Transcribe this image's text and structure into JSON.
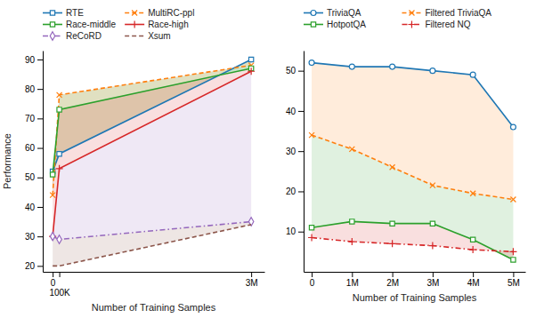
{
  "chart_data": [
    {
      "type": "line",
      "x_label": "Number of Training Samples",
      "y_label": "Performance",
      "x": [
        0,
        100000,
        3000000
      ],
      "xlim": [
        -150000,
        3200000
      ],
      "xticks": [
        0,
        {
          "value": 100000,
          "label": "100K"
        },
        {
          "value": 3000000,
          "label": "3M"
        }
      ],
      "ylim": [
        18,
        93
      ],
      "yticks": [
        20,
        30,
        40,
        50,
        60,
        70,
        80,
        90
      ],
      "series": [
        {
          "name": "RTE",
          "values": [
            52,
            58,
            90
          ],
          "marker": "square",
          "line_style": "solid"
        },
        {
          "name": "MultiRC-ppl",
          "values": [
            44,
            78,
            88
          ],
          "marker": "x",
          "line_style": "dashed"
        },
        {
          "name": "Race-middle",
          "values": [
            51,
            73,
            87
          ],
          "marker": "square",
          "line_style": "solid"
        },
        {
          "name": "Race-high",
          "values": [
            30,
            53,
            86
          ],
          "marker": "plus",
          "line_style": "solid"
        },
        {
          "name": "ReCoRD",
          "values": [
            30,
            29,
            35
          ],
          "marker": "diamond",
          "line_style": "dashdot"
        },
        {
          "name": "Xsum",
          "values": [
            20,
            20,
            34
          ],
          "marker": "none",
          "line_style": "dashed"
        }
      ],
      "fills": [
        {
          "upper": "RTE",
          "lower": "MultiRC-ppl"
        },
        {
          "upper": "MultiRC-ppl",
          "lower": "Race-middle"
        },
        {
          "upper": "RTE",
          "lower": "Race-middle"
        },
        {
          "upper": "Race-middle",
          "lower": "Race-high"
        },
        {
          "upper": "Race-high",
          "lower": "ReCoRD"
        },
        {
          "upper": "ReCoRD",
          "lower": "Xsum"
        }
      ],
      "legend": "top",
      "grid": false
    },
    {
      "type": "line",
      "x_label": "Number of Training Samples",
      "x": [
        0,
        1000000,
        2000000,
        3000000,
        4000000,
        5000000
      ],
      "xlim": [
        -200000,
        5300000
      ],
      "xticks": [
        0,
        {
          "value": 1000000,
          "label": "1M"
        },
        {
          "value": 2000000,
          "label": "2M"
        },
        {
          "value": 3000000,
          "label": "3M"
        },
        {
          "value": 4000000,
          "label": "4M"
        },
        {
          "value": 5000000,
          "label": "5M"
        }
      ],
      "ylim": [
        0,
        55
      ],
      "yticks": [
        10,
        20,
        30,
        40,
        50
      ],
      "series": [
        {
          "name": "TriviaQA",
          "values": [
            52,
            51,
            51,
            50,
            49,
            36
          ],
          "marker": "circle",
          "line_style": "solid"
        },
        {
          "name": "Filtered TriviaQA",
          "values": [
            34,
            30.5,
            26,
            21.5,
            19.5,
            18
          ],
          "marker": "x",
          "line_style": "dashed"
        },
        {
          "name": "HotpotQA",
          "values": [
            11,
            12.5,
            12,
            12,
            8,
            3
          ],
          "marker": "square",
          "line_style": "solid"
        },
        {
          "name": "Filtered NQ",
          "values": [
            8.5,
            7.5,
            7.0,
            6.5,
            5.5,
            5.0
          ],
          "marker": "plus",
          "line_style": "dashdot"
        }
      ],
      "fills": [
        {
          "upper": "TriviaQA",
          "lower": "Filtered TriviaQA"
        },
        {
          "upper": "Filtered TriviaQA",
          "lower": "HotpotQA"
        },
        {
          "upper": "HotpotQA",
          "lower": "Filtered NQ"
        }
      ],
      "legend": "top",
      "grid": false
    }
  ]
}
